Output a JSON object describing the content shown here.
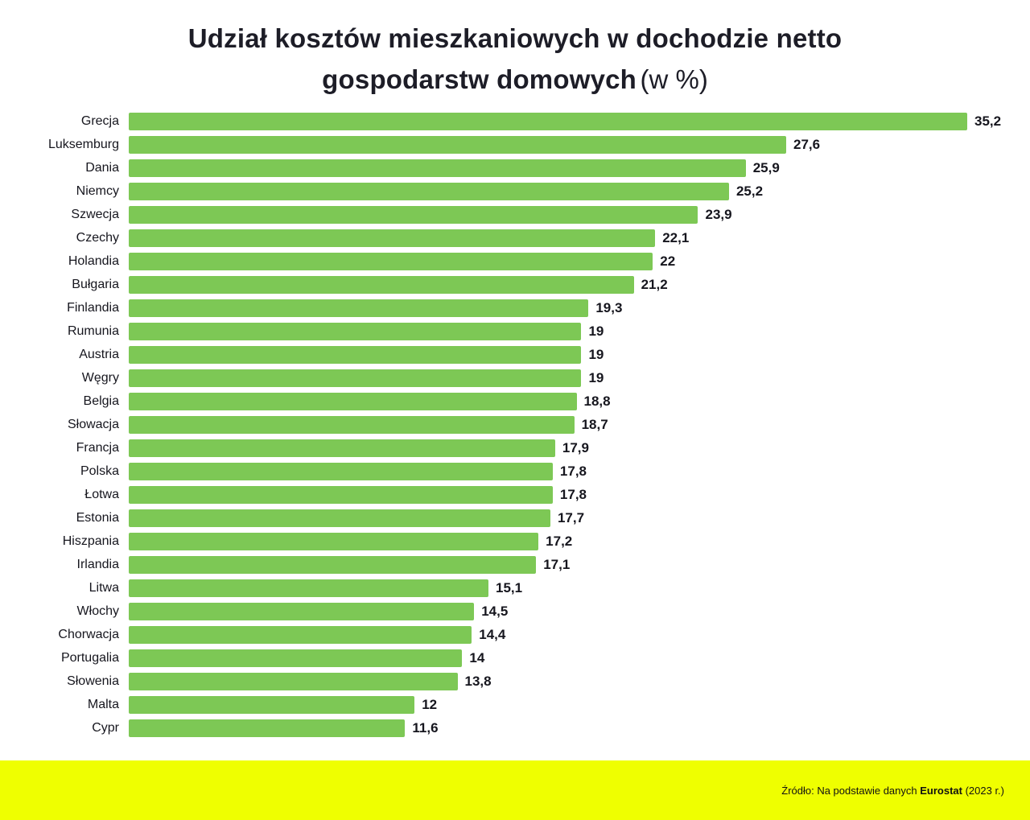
{
  "title": {
    "line1": "Udział kosztów mieszkaniowych w dochodzie netto",
    "line2_bold": "gospodarstw domowych",
    "line2_normal": "(w %)"
  },
  "chart_data": {
    "type": "bar",
    "orientation": "horizontal",
    "title": "Udział kosztów mieszkaniowych w dochodzie netto gospodarstw domowych (w %)",
    "xlabel": "",
    "ylabel": "",
    "xlim": [
      0,
      35.2
    ],
    "grid": false,
    "legend": false,
    "bar_color": "#7dc855",
    "categories": [
      "Grecja",
      "Luksemburg",
      "Dania",
      "Niemcy",
      "Szwecja",
      "Czechy",
      "Holandia",
      "Bułgaria",
      "Finlandia",
      "Rumunia",
      "Austria",
      "Węgry",
      "Belgia",
      "Słowacja",
      "Francja",
      "Polska",
      "Łotwa",
      "Estonia",
      "Hiszpania",
      "Irlandia",
      "Litwa",
      "Włochy",
      "Chorwacja",
      "Portugalia",
      "Słowenia",
      "Malta",
      "Cypr"
    ],
    "values": [
      35.2,
      27.6,
      25.9,
      25.2,
      23.9,
      22.1,
      22,
      21.2,
      19.3,
      19,
      19,
      19,
      18.8,
      18.7,
      17.9,
      17.8,
      17.8,
      17.7,
      17.2,
      17.1,
      15.1,
      14.5,
      14.4,
      14,
      13.8,
      12,
      11.6
    ],
    "value_labels": [
      "35,2",
      "27,6",
      "25,9",
      "25,2",
      "23,9",
      "22,1",
      "22",
      "21,2",
      "19,3",
      "19",
      "19",
      "19",
      "18,8",
      "18,7",
      "17,9",
      "17,8",
      "17,8",
      "17,7",
      "17,2",
      "17,1",
      "15,1",
      "14,5",
      "14,4",
      "14",
      "13,8",
      "12",
      "11,6"
    ]
  },
  "footer": {
    "prefix": "Źródło: Na podstawie danych ",
    "bold": "Eurostat",
    "suffix": " (2023 r.)",
    "background": "#efff00"
  }
}
